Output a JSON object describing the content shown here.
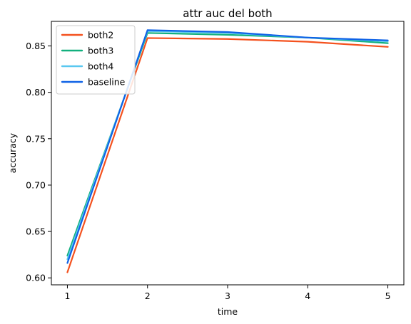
{
  "chart_data": {
    "type": "line",
    "title": "attr auc del both",
    "xlabel": "time",
    "ylabel": "accuracy",
    "x": [
      1,
      2,
      3,
      4,
      5
    ],
    "xticks": [
      "1",
      "2",
      "3",
      "4",
      "5"
    ],
    "yticks": [
      "0.60",
      "0.65",
      "0.70",
      "0.75",
      "0.80",
      "0.85"
    ],
    "xlim": [
      0.8,
      5.2
    ],
    "ylim": [
      0.5925,
      0.8765
    ],
    "legend_position": "top-left",
    "grid": false,
    "series": [
      {
        "name": "both2",
        "color": "#f4511e",
        "values": [
          0.606,
          0.8585,
          0.8575,
          0.8545,
          0.849
        ]
      },
      {
        "name": "both3",
        "color": "#12b07e",
        "values": [
          0.624,
          0.864,
          0.862,
          0.859,
          0.853
        ]
      },
      {
        "name": "both4",
        "color": "#5ac8f0",
        "values": [
          0.62,
          0.866,
          0.864,
          0.859,
          0.855
        ]
      },
      {
        "name": "baseline",
        "color": "#0f62e6",
        "values": [
          0.616,
          0.867,
          0.865,
          0.859,
          0.856
        ]
      }
    ]
  }
}
